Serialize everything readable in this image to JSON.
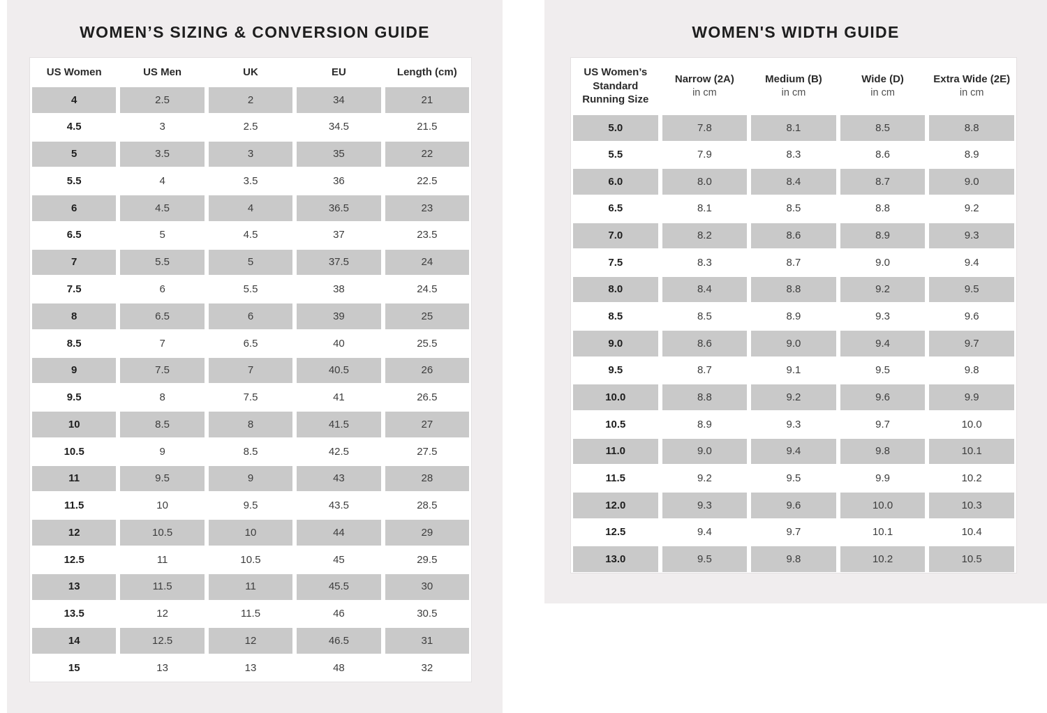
{
  "colors": {
    "panel_background": "#f0edee",
    "row_shade": "#c9c9c9",
    "card_border": "#e3e0e1",
    "title_color": "#1e1e1e"
  },
  "sizing_guide": {
    "title": "WOMEN’S SIZING & CONVERSION GUIDE",
    "columns": [
      "US Women",
      "US Men",
      "UK",
      "EU",
      "Length (cm)"
    ],
    "rows": [
      [
        "4",
        "2.5",
        "2",
        "34",
        "21"
      ],
      [
        "4.5",
        "3",
        "2.5",
        "34.5",
        "21.5"
      ],
      [
        "5",
        "3.5",
        "3",
        "35",
        "22"
      ],
      [
        "5.5",
        "4",
        "3.5",
        "36",
        "22.5"
      ],
      [
        "6",
        "4.5",
        "4",
        "36.5",
        "23"
      ],
      [
        "6.5",
        "5",
        "4.5",
        "37",
        "23.5"
      ],
      [
        "7",
        "5.5",
        "5",
        "37.5",
        "24"
      ],
      [
        "7.5",
        "6",
        "5.5",
        "38",
        "24.5"
      ],
      [
        "8",
        "6.5",
        "6",
        "39",
        "25"
      ],
      [
        "8.5",
        "7",
        "6.5",
        "40",
        "25.5"
      ],
      [
        "9",
        "7.5",
        "7",
        "40.5",
        "26"
      ],
      [
        "9.5",
        "8",
        "7.5",
        "41",
        "26.5"
      ],
      [
        "10",
        "8.5",
        "8",
        "41.5",
        "27"
      ],
      [
        "10.5",
        "9",
        "8.5",
        "42.5",
        "27.5"
      ],
      [
        "11",
        "9.5",
        "9",
        "43",
        "28"
      ],
      [
        "11.5",
        "10",
        "9.5",
        "43.5",
        "28.5"
      ],
      [
        "12",
        "10.5",
        "10",
        "44",
        "29"
      ],
      [
        "12.5",
        "11",
        "10.5",
        "45",
        "29.5"
      ],
      [
        "13",
        "11.5",
        "11",
        "45.5",
        "30"
      ],
      [
        "13.5",
        "12",
        "11.5",
        "46",
        "30.5"
      ],
      [
        "14",
        "12.5",
        "12",
        "46.5",
        "31"
      ],
      [
        "15",
        "13",
        "13",
        "48",
        "32"
      ]
    ]
  },
  "width_guide": {
    "title": "WOMEN'S WIDTH GUIDE",
    "columns": [
      {
        "label": "US Women’s Standard Running Size",
        "sub": ""
      },
      {
        "label": "Narrow (2A)",
        "sub": "in cm"
      },
      {
        "label": "Medium (B)",
        "sub": "in cm"
      },
      {
        "label": "Wide (D)",
        "sub": "in cm"
      },
      {
        "label": "Extra Wide (2E)",
        "sub": "in cm"
      }
    ],
    "rows": [
      [
        "5.0",
        "7.8",
        "8.1",
        "8.5",
        "8.8"
      ],
      [
        "5.5",
        "7.9",
        "8.3",
        "8.6",
        "8.9"
      ],
      [
        "6.0",
        "8.0",
        "8.4",
        "8.7",
        "9.0"
      ],
      [
        "6.5",
        "8.1",
        "8.5",
        "8.8",
        "9.2"
      ],
      [
        "7.0",
        "8.2",
        "8.6",
        "8.9",
        "9.3"
      ],
      [
        "7.5",
        "8.3",
        "8.7",
        "9.0",
        "9.4"
      ],
      [
        "8.0",
        "8.4",
        "8.8",
        "9.2",
        "9.5"
      ],
      [
        "8.5",
        "8.5",
        "8.9",
        "9.3",
        "9.6"
      ],
      [
        "9.0",
        "8.6",
        "9.0",
        "9.4",
        "9.7"
      ],
      [
        "9.5",
        "8.7",
        "9.1",
        "9.5",
        "9.8"
      ],
      [
        "10.0",
        "8.8",
        "9.2",
        "9.6",
        "9.9"
      ],
      [
        "10.5",
        "8.9",
        "9.3",
        "9.7",
        "10.0"
      ],
      [
        "11.0",
        "9.0",
        "9.4",
        "9.8",
        "10.1"
      ],
      [
        "11.5",
        "9.2",
        "9.5",
        "9.9",
        "10.2"
      ],
      [
        "12.0",
        "9.3",
        "9.6",
        "10.0",
        "10.3"
      ],
      [
        "12.5",
        "9.4",
        "9.7",
        "10.1",
        "10.4"
      ],
      [
        "13.0",
        "9.5",
        "9.8",
        "10.2",
        "10.5"
      ]
    ]
  }
}
